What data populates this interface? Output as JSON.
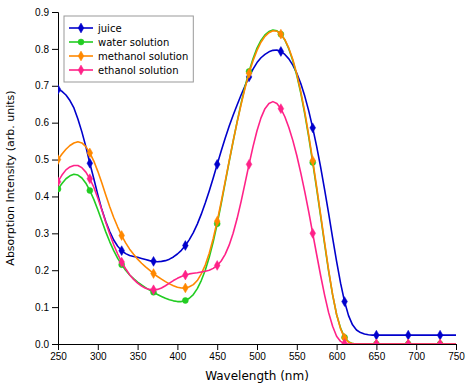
{
  "chart_data": {
    "type": "line",
    "xlabel": "Wavelength (nm)",
    "ylabel": "Absorption Intensity (arb. units)",
    "xlim": [
      250,
      750
    ],
    "ylim": [
      0,
      0.9
    ],
    "xticks": [
      250,
      300,
      350,
      400,
      450,
      500,
      550,
      600,
      650,
      700,
      750
    ],
    "yticks": [
      {
        "value": 0,
        "label": "0.0"
      },
      0.1,
      0.2,
      0.3,
      0.4,
      0.5,
      0.6,
      0.7,
      0.8,
      0.9
    ],
    "grid": false,
    "legend": "upper left",
    "x": [
      250,
      255,
      260,
      265,
      270,
      275,
      280,
      285,
      290,
      295,
      300,
      305,
      310,
      315,
      320,
      325,
      330,
      335,
      340,
      345,
      350,
      355,
      360,
      365,
      370,
      375,
      380,
      385,
      390,
      395,
      400,
      405,
      410,
      415,
      420,
      425,
      430,
      435,
      440,
      445,
      450,
      455,
      460,
      465,
      470,
      475,
      480,
      485,
      490,
      495,
      500,
      505,
      510,
      515,
      520,
      525,
      530,
      535,
      540,
      545,
      550,
      555,
      560,
      565,
      570,
      575,
      580,
      585,
      590,
      595,
      600,
      605,
      610,
      615,
      620,
      625,
      630,
      635,
      640,
      645,
      650,
      655,
      660,
      665,
      670,
      675,
      680,
      685,
      690,
      695,
      700,
      705,
      710,
      715,
      720,
      725,
      730,
      735,
      740,
      745,
      750
    ],
    "series": [
      {
        "name": "juice",
        "color": "#0000cc",
        "marker": "diamond",
        "values": [
          0.69,
          0.685,
          0.675,
          0.66,
          0.64,
          0.61,
          0.575,
          0.535,
          0.49,
          0.448,
          0.405,
          0.365,
          0.332,
          0.305,
          0.282,
          0.265,
          0.253,
          0.245,
          0.24,
          0.237,
          0.235,
          0.232,
          0.229,
          0.226,
          0.224,
          0.223,
          0.224,
          0.226,
          0.23,
          0.236,
          0.244,
          0.254,
          0.267,
          0.283,
          0.302,
          0.325,
          0.352,
          0.382,
          0.415,
          0.45,
          0.487,
          0.523,
          0.558,
          0.59,
          0.62,
          0.648,
          0.675,
          0.7,
          0.724,
          0.745,
          0.763,
          0.776,
          0.785,
          0.792,
          0.796,
          0.797,
          0.793,
          0.785,
          0.773,
          0.756,
          0.734,
          0.706,
          0.672,
          0.632,
          0.586,
          0.535,
          0.479,
          0.418,
          0.354,
          0.288,
          0.224,
          0.165,
          0.115,
          0.077,
          0.052,
          0.038,
          0.031,
          0.027,
          0.025,
          0.024,
          0.024,
          0.024,
          0.024,
          0.024,
          0.024,
          0.024,
          0.024,
          0.024,
          0.024,
          0.024,
          0.024,
          0.024,
          0.024,
          0.024,
          0.024,
          0.024,
          0.024,
          0.024,
          0.024,
          0.024,
          0.024
        ]
      },
      {
        "name": "water solution",
        "color": "#22cc22",
        "marker": "circle",
        "values": [
          0.42,
          0.435,
          0.448,
          0.456,
          0.46,
          0.458,
          0.45,
          0.436,
          0.416,
          0.392,
          0.364,
          0.334,
          0.304,
          0.277,
          0.253,
          0.232,
          0.215,
          0.2,
          0.187,
          0.177,
          0.168,
          0.16,
          0.153,
          0.146,
          0.14,
          0.134,
          0.129,
          0.124,
          0.12,
          0.117,
          0.115,
          0.115,
          0.118,
          0.124,
          0.134,
          0.15,
          0.172,
          0.2,
          0.235,
          0.277,
          0.326,
          0.38,
          0.437,
          0.494,
          0.549,
          0.602,
          0.652,
          0.698,
          0.739,
          0.773,
          0.802,
          0.823,
          0.838,
          0.847,
          0.851,
          0.849,
          0.84,
          0.824,
          0.8,
          0.768,
          0.728,
          0.68,
          0.624,
          0.561,
          0.492,
          0.42,
          0.345,
          0.27,
          0.197,
          0.133,
          0.08,
          0.043,
          0.018,
          0.006,
          0.001,
          0.0,
          0.0,
          0.0,
          0.0,
          0.0,
          0.0,
          0.0,
          0.0,
          0.0,
          0.0,
          0.0,
          0.0,
          0.0,
          0.0,
          0.0,
          0.0,
          0.0,
          0.0,
          0.0,
          0.0,
          0.0,
          0.0,
          0.0,
          0.0,
          0.0,
          0.0
        ]
      },
      {
        "name": "methanol solution",
        "color": "#ff8800",
        "marker": "diamond",
        "values": [
          0.5,
          0.515,
          0.528,
          0.538,
          0.545,
          0.548,
          0.545,
          0.535,
          0.518,
          0.496,
          0.468,
          0.437,
          0.404,
          0.372,
          0.343,
          0.317,
          0.294,
          0.274,
          0.257,
          0.243,
          0.23,
          0.219,
          0.209,
          0.2,
          0.191,
          0.183,
          0.176,
          0.169,
          0.163,
          0.158,
          0.154,
          0.152,
          0.152,
          0.155,
          0.161,
          0.172,
          0.19,
          0.214,
          0.246,
          0.286,
          0.333,
          0.385,
          0.44,
          0.496,
          0.55,
          0.601,
          0.649,
          0.694,
          0.734,
          0.768,
          0.796,
          0.818,
          0.834,
          0.844,
          0.849,
          0.848,
          0.84,
          0.825,
          0.802,
          0.771,
          0.732,
          0.684,
          0.629,
          0.566,
          0.497,
          0.425,
          0.35,
          0.274,
          0.2,
          0.134,
          0.08,
          0.041,
          0.016,
          0.005,
          0.001,
          0.0,
          0.0,
          0.0,
          0.0,
          0.0,
          0.0,
          0.0,
          0.0,
          0.0,
          0.0,
          0.0,
          0.0,
          0.0,
          0.0,
          0.0,
          0.0,
          0.0,
          0.0,
          0.0,
          0.0,
          0.0,
          0.0,
          0.0,
          0.0,
          0.0,
          0.0
        ]
      },
      {
        "name": "ethanol solution",
        "color": "#ff2288",
        "marker": "diamond",
        "values": [
          0.44,
          0.458,
          0.472,
          0.48,
          0.484,
          0.484,
          0.478,
          0.466,
          0.448,
          0.425,
          0.396,
          0.364,
          0.33,
          0.298,
          0.269,
          0.244,
          0.222,
          0.204,
          0.188,
          0.175,
          0.165,
          0.157,
          0.151,
          0.148,
          0.147,
          0.148,
          0.152,
          0.158,
          0.165,
          0.172,
          0.178,
          0.183,
          0.187,
          0.19,
          0.192,
          0.193,
          0.195,
          0.197,
          0.2,
          0.205,
          0.213,
          0.225,
          0.243,
          0.268,
          0.3,
          0.34,
          0.386,
          0.436,
          0.487,
          0.535,
          0.578,
          0.613,
          0.638,
          0.652,
          0.657,
          0.652,
          0.638,
          0.616,
          0.587,
          0.552,
          0.511,
          0.464,
          0.413,
          0.358,
          0.3,
          0.242,
          0.185,
          0.132,
          0.085,
          0.048,
          0.021,
          0.007,
          0.001,
          0.0,
          0.0,
          0.0,
          0.0,
          0.0,
          0.0,
          0.0,
          0.0,
          0.0,
          0.0,
          0.0,
          0.0,
          0.0,
          0.0,
          0.0,
          0.0,
          0.0,
          0.0,
          0.0,
          0.0,
          0.0,
          0.0,
          0.0,
          0.0,
          0.0,
          0.0,
          0.0,
          0.0
        ]
      }
    ]
  }
}
